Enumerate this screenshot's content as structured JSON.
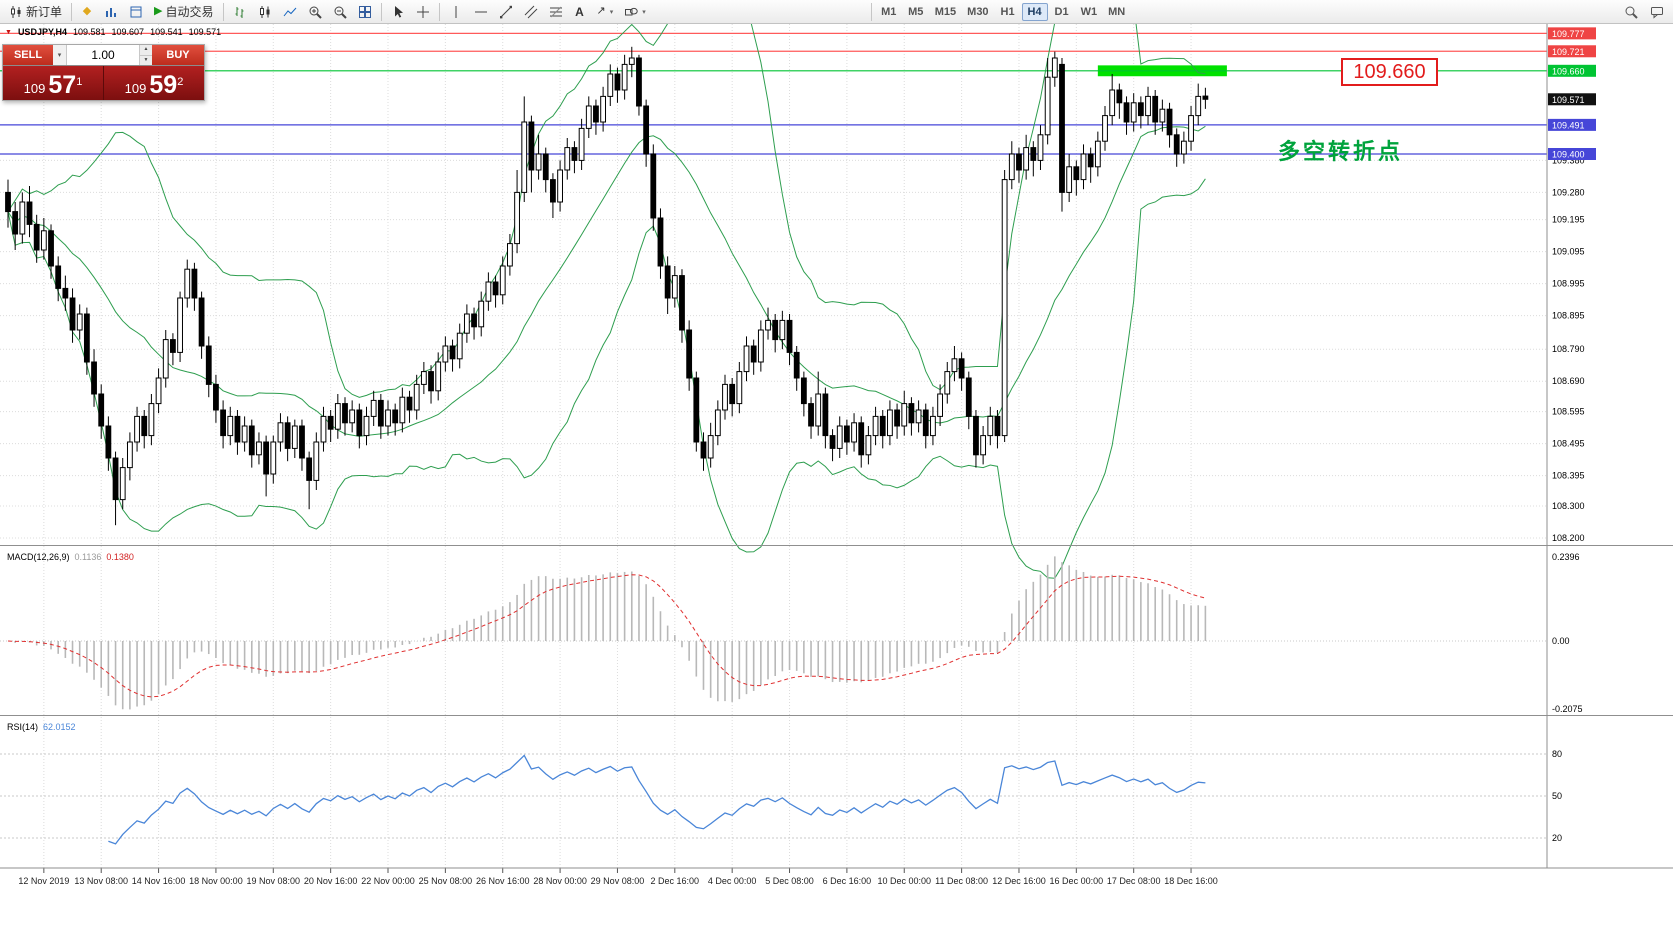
{
  "icons": {
    "one_click_toggle": "▼",
    "dropdown_caret": "▾",
    "autotrading_play": "▶",
    "favorites_diamond": "◆",
    "arrow_tool": "↗",
    "spin_up": "▲",
    "spin_down": "▼"
  },
  "toolbar": {
    "new_order_label": "新订单",
    "autotrading_label": "自动交易",
    "text_tool_label": "A",
    "timeframes": [
      "M1",
      "M5",
      "M15",
      "M30",
      "H1",
      "H4",
      "D1",
      "W1",
      "MN"
    ],
    "active_timeframe": "H4"
  },
  "quote_bar": {
    "symbol_period": "USDJPY,H4",
    "open": "109.581",
    "high": "109.607",
    "low": "109.541",
    "close": "109.571"
  },
  "one_click": {
    "sell_label": "SELL",
    "buy_label": "BUY",
    "volume": "1.00",
    "bid": {
      "big": "109",
      "pips": "57",
      "pt": "1"
    },
    "ask": {
      "big": "109",
      "pips": "59",
      "pt": "2"
    }
  },
  "annotations": {
    "price_callout": "109.660",
    "note_text": "多空转折点",
    "note_color": "#00a33c",
    "callout_color": "#e21c1c"
  },
  "chart_data": [
    {
      "id": "price-panel",
      "type": "candlestick",
      "symbol": "USDJPY",
      "timeframe": "H4",
      "ylim": [
        108.2,
        109.81
      ],
      "grid_prices": [
        109.38,
        109.28,
        109.195,
        109.095,
        108.995,
        108.895,
        108.79,
        108.69,
        108.595,
        108.495,
        108.395,
        108.3,
        108.2
      ],
      "marked_prices": [
        {
          "price": 109.777,
          "bg": "#ef4444"
        },
        {
          "price": 109.721,
          "bg": "#ef4444"
        },
        {
          "price": 109.66,
          "bg": "#00c433"
        },
        {
          "price": 109.571,
          "bg": "#111111"
        },
        {
          "price": 109.491,
          "bg": "#4646d8"
        },
        {
          "price": 109.4,
          "bg": "#4646d8"
        }
      ],
      "hlines": [
        {
          "price": 109.777,
          "color": "#ff5a5a"
        },
        {
          "price": 109.721,
          "color": "#ff5a5a"
        },
        {
          "price": 109.66,
          "color": "#00c433"
        },
        {
          "price": 109.491,
          "color": "#4646d8"
        },
        {
          "price": 109.4,
          "color": "#4646d8"
        }
      ],
      "highlight_rect": {
        "price_top": 109.677,
        "price_bottom": 109.643,
        "bar_start": 152,
        "bar_end": 170,
        "color": "#00e100"
      },
      "bollinger": {
        "period": 20,
        "deviations": 2,
        "color": "#2e9e4f"
      },
      "x_label_first_bar": 5,
      "x_label_step": 8,
      "x_labels": [
        "12 Nov 2019",
        "13 Nov 08:00",
        "14 Nov 16:00",
        "18 Nov 00:00",
        "19 Nov 08:00",
        "20 Nov 16:00",
        "22 Nov 00:00",
        "25 Nov 08:00",
        "26 Nov 16:00",
        "28 Nov 00:00",
        "29 Nov 08:00",
        "2 Dec 16:00",
        "4 Dec 00:00",
        "5 Dec 08:00",
        "6 Dec 16:00",
        "10 Dec 00:00",
        "11 Dec 08:00",
        "12 Dec 16:00",
        "16 Dec 00:00",
        "17 Dec 08:00",
        "18 Dec 16:00"
      ],
      "ohlc": [
        [
          109.28,
          109.32,
          109.17,
          109.22
        ],
        [
          109.22,
          109.25,
          109.1,
          109.15
        ],
        [
          109.15,
          109.28,
          109.12,
          109.25
        ],
        [
          109.25,
          109.3,
          109.14,
          109.18
        ],
        [
          109.18,
          109.21,
          109.06,
          109.1
        ],
        [
          109.1,
          109.2,
          109.07,
          109.16
        ],
        [
          109.16,
          109.18,
          109.01,
          109.05
        ],
        [
          109.05,
          109.08,
          108.94,
          108.98
        ],
        [
          108.98,
          109.02,
          108.91,
          108.95
        ],
        [
          108.95,
          108.98,
          108.81,
          108.85
        ],
        [
          108.85,
          108.93,
          108.82,
          108.9
        ],
        [
          108.9,
          108.92,
          108.71,
          108.75
        ],
        [
          108.75,
          108.79,
          108.61,
          108.65
        ],
        [
          108.65,
          108.68,
          108.51,
          108.55
        ],
        [
          108.55,
          108.58,
          108.41,
          108.45
        ],
        [
          108.45,
          108.47,
          108.24,
          108.32
        ],
        [
          108.32,
          108.45,
          108.29,
          108.42
        ],
        [
          108.42,
          108.53,
          108.38,
          108.5
        ],
        [
          108.5,
          108.61,
          108.47,
          108.58
        ],
        [
          108.58,
          108.6,
          108.48,
          108.52
        ],
        [
          108.52,
          108.65,
          108.49,
          108.62
        ],
        [
          108.62,
          108.73,
          108.59,
          108.7
        ],
        [
          108.7,
          108.85,
          108.67,
          108.82
        ],
        [
          108.82,
          108.84,
          108.74,
          108.78
        ],
        [
          108.78,
          108.97,
          108.75,
          108.95
        ],
        [
          108.95,
          109.07,
          108.92,
          109.04
        ],
        [
          109.04,
          109.06,
          108.91,
          108.95
        ],
        [
          108.95,
          108.97,
          108.76,
          108.8
        ],
        [
          108.8,
          108.83,
          108.64,
          108.68
        ],
        [
          108.68,
          108.71,
          108.56,
          108.6
        ],
        [
          108.6,
          108.63,
          108.48,
          108.52
        ],
        [
          108.52,
          108.61,
          108.49,
          108.58
        ],
        [
          108.58,
          108.6,
          108.46,
          108.5
        ],
        [
          108.5,
          108.58,
          108.47,
          108.55
        ],
        [
          108.55,
          108.57,
          108.42,
          108.46
        ],
        [
          108.46,
          108.53,
          108.43,
          108.5
        ],
        [
          108.5,
          108.52,
          108.33,
          108.4
        ],
        [
          108.4,
          108.52,
          108.37,
          108.5
        ],
        [
          108.5,
          108.59,
          108.47,
          108.56
        ],
        [
          108.56,
          108.58,
          108.44,
          108.48
        ],
        [
          108.48,
          108.57,
          108.45,
          108.55
        ],
        [
          108.55,
          108.57,
          108.41,
          108.45
        ],
        [
          108.45,
          108.47,
          108.29,
          108.38
        ],
        [
          108.38,
          108.53,
          108.35,
          108.5
        ],
        [
          108.5,
          108.61,
          108.47,
          108.58
        ],
        [
          108.58,
          108.6,
          108.5,
          108.54
        ],
        [
          108.54,
          108.65,
          108.51,
          108.62
        ],
        [
          108.62,
          108.64,
          108.52,
          108.56
        ],
        [
          108.56,
          108.63,
          108.53,
          108.6
        ],
        [
          108.6,
          108.62,
          108.48,
          108.52
        ],
        [
          108.52,
          108.61,
          108.49,
          108.58
        ],
        [
          108.58,
          108.66,
          108.55,
          108.63
        ],
        [
          108.63,
          108.65,
          108.51,
          108.55
        ],
        [
          108.55,
          108.63,
          108.52,
          108.6
        ],
        [
          108.6,
          108.62,
          108.52,
          108.56
        ],
        [
          108.56,
          108.67,
          108.53,
          108.64
        ],
        [
          108.64,
          108.66,
          108.56,
          108.6
        ],
        [
          108.6,
          108.71,
          108.57,
          108.68
        ],
        [
          108.68,
          108.75,
          108.65,
          108.72
        ],
        [
          108.72,
          108.74,
          108.62,
          108.66
        ],
        [
          108.66,
          108.78,
          108.63,
          108.75
        ],
        [
          108.75,
          108.83,
          108.72,
          108.8
        ],
        [
          108.8,
          108.82,
          108.72,
          108.76
        ],
        [
          108.76,
          108.87,
          108.73,
          108.84
        ],
        [
          108.84,
          108.93,
          108.81,
          108.9
        ],
        [
          108.9,
          108.92,
          108.82,
          108.86
        ],
        [
          108.86,
          108.97,
          108.83,
          108.94
        ],
        [
          108.94,
          109.03,
          108.91,
          109.0
        ],
        [
          109.0,
          109.02,
          108.92,
          108.96
        ],
        [
          108.96,
          109.08,
          108.93,
          109.05
        ],
        [
          109.05,
          109.15,
          109.02,
          109.12
        ],
        [
          109.12,
          109.35,
          109.09,
          109.28
        ],
        [
          109.28,
          109.58,
          109.25,
          109.5
        ],
        [
          109.5,
          109.52,
          109.28,
          109.35
        ],
        [
          109.35,
          109.46,
          109.32,
          109.4
        ],
        [
          109.4,
          109.42,
          109.28,
          109.32
        ],
        [
          109.32,
          109.34,
          109.2,
          109.25
        ],
        [
          109.25,
          109.38,
          109.22,
          109.35
        ],
        [
          109.35,
          109.45,
          109.32,
          109.42
        ],
        [
          109.42,
          109.44,
          109.34,
          109.38
        ],
        [
          109.38,
          109.51,
          109.35,
          109.48
        ],
        [
          109.48,
          109.58,
          109.45,
          109.55
        ],
        [
          109.55,
          109.57,
          109.46,
          109.5
        ],
        [
          109.5,
          109.61,
          109.47,
          109.58
        ],
        [
          109.58,
          109.68,
          109.55,
          109.65
        ],
        [
          109.65,
          109.67,
          109.56,
          109.6
        ],
        [
          109.6,
          109.71,
          109.57,
          109.68
        ],
        [
          109.68,
          109.735,
          109.64,
          109.7
        ],
        [
          109.7,
          109.71,
          109.52,
          109.55
        ],
        [
          109.55,
          109.57,
          109.36,
          109.4
        ],
        [
          109.4,
          109.43,
          109.16,
          109.2
        ],
        [
          109.2,
          109.23,
          109.01,
          109.05
        ],
        [
          109.05,
          109.08,
          108.9,
          108.95
        ],
        [
          108.95,
          109.05,
          108.92,
          109.02
        ],
        [
          109.02,
          109.04,
          108.81,
          108.85
        ],
        [
          108.85,
          108.88,
          108.66,
          108.7
        ],
        [
          108.7,
          108.72,
          108.47,
          108.5
        ],
        [
          108.5,
          108.53,
          108.41,
          108.45
        ],
        [
          108.45,
          108.56,
          108.42,
          108.52
        ],
        [
          108.52,
          108.63,
          108.49,
          108.6
        ],
        [
          108.6,
          108.71,
          108.57,
          108.68
        ],
        [
          108.68,
          108.7,
          108.58,
          108.62
        ],
        [
          108.62,
          108.75,
          108.59,
          108.72
        ],
        [
          108.72,
          108.83,
          108.69,
          108.8
        ],
        [
          108.8,
          108.82,
          108.71,
          108.75
        ],
        [
          108.75,
          108.88,
          108.72,
          108.85
        ],
        [
          108.85,
          108.92,
          108.82,
          108.88
        ],
        [
          108.88,
          108.9,
          108.78,
          108.82
        ],
        [
          108.82,
          108.91,
          108.79,
          108.88
        ],
        [
          108.88,
          108.9,
          108.74,
          108.78
        ],
        [
          108.78,
          108.8,
          108.66,
          108.7
        ],
        [
          108.7,
          108.72,
          108.58,
          108.62
        ],
        [
          108.62,
          108.64,
          108.51,
          108.55
        ],
        [
          108.55,
          108.72,
          108.52,
          108.65
        ],
        [
          108.65,
          108.67,
          108.48,
          108.52
        ],
        [
          108.52,
          108.54,
          108.44,
          108.48
        ],
        [
          108.48,
          108.58,
          108.45,
          108.55
        ],
        [
          108.55,
          108.57,
          108.46,
          108.5
        ],
        [
          108.5,
          108.59,
          108.47,
          108.56
        ],
        [
          108.56,
          108.58,
          108.42,
          108.46
        ],
        [
          108.46,
          108.55,
          108.43,
          108.52
        ],
        [
          108.52,
          108.61,
          108.49,
          108.58
        ],
        [
          108.58,
          108.6,
          108.48,
          108.52
        ],
        [
          108.52,
          108.63,
          108.49,
          108.6
        ],
        [
          108.6,
          108.62,
          108.51,
          108.55
        ],
        [
          108.55,
          108.66,
          108.52,
          108.62
        ],
        [
          108.62,
          108.64,
          108.52,
          108.56
        ],
        [
          108.56,
          108.63,
          108.53,
          108.6
        ],
        [
          108.6,
          108.62,
          108.48,
          108.52
        ],
        [
          108.52,
          108.61,
          108.49,
          108.58
        ],
        [
          108.58,
          108.68,
          108.55,
          108.65
        ],
        [
          108.65,
          108.75,
          108.62,
          108.72
        ],
        [
          108.72,
          108.8,
          108.69,
          108.76
        ],
        [
          108.76,
          108.78,
          108.66,
          108.7
        ],
        [
          108.7,
          108.72,
          108.54,
          108.58
        ],
        [
          108.58,
          108.6,
          108.42,
          108.46
        ],
        [
          108.46,
          108.55,
          108.43,
          108.52
        ],
        [
          108.52,
          108.61,
          108.49,
          108.58
        ],
        [
          108.58,
          108.6,
          108.48,
          108.52
        ],
        [
          108.52,
          109.35,
          108.5,
          109.32
        ],
        [
          109.32,
          109.44,
          109.29,
          109.4
        ],
        [
          109.4,
          109.42,
          109.31,
          109.35
        ],
        [
          109.35,
          109.46,
          109.32,
          109.42
        ],
        [
          109.42,
          109.44,
          109.33,
          109.38
        ],
        [
          109.38,
          109.49,
          109.35,
          109.46
        ],
        [
          109.46,
          109.7,
          109.43,
          109.64
        ],
        [
          109.64,
          109.72,
          109.61,
          109.7
        ],
        [
          109.68,
          109.7,
          109.22,
          109.28
        ],
        [
          109.28,
          109.4,
          109.25,
          109.36
        ],
        [
          109.36,
          109.38,
          109.27,
          109.32
        ],
        [
          109.32,
          109.43,
          109.29,
          109.4
        ],
        [
          109.4,
          109.42,
          109.31,
          109.36
        ],
        [
          109.36,
          109.47,
          109.33,
          109.44
        ],
        [
          109.44,
          109.55,
          109.41,
          109.52
        ],
        [
          109.52,
          109.65,
          109.49,
          109.6
        ],
        [
          109.6,
          109.62,
          109.51,
          109.56
        ],
        [
          109.56,
          109.58,
          109.46,
          109.5
        ],
        [
          109.5,
          109.59,
          109.47,
          109.56
        ],
        [
          109.56,
          109.58,
          109.48,
          109.52
        ],
        [
          109.52,
          109.61,
          109.49,
          109.58
        ],
        [
          109.58,
          109.6,
          109.46,
          109.5
        ],
        [
          109.5,
          109.57,
          109.47,
          109.54
        ],
        [
          109.54,
          109.56,
          109.42,
          109.46
        ],
        [
          109.46,
          109.48,
          109.36,
          109.4
        ],
        [
          109.4,
          109.47,
          109.37,
          109.44
        ],
        [
          109.44,
          109.55,
          109.41,
          109.52
        ],
        [
          109.52,
          109.62,
          109.49,
          109.58
        ],
        [
          109.581,
          109.607,
          109.541,
          109.571
        ]
      ]
    },
    {
      "id": "macd-panel",
      "type": "bar",
      "name": "MACD(12,26,9)",
      "current_macd": "0.1136",
      "current_signal": "0.1380",
      "params": [
        12,
        26,
        9
      ],
      "scale_labels": {
        "top": "0.2396",
        "zero": "0.00",
        "bottom": "-0.2075"
      },
      "histogram_color": "#b8b8b8",
      "signal_color": "#e03030",
      "derived_from": "computed from price-panel ohlc closes"
    },
    {
      "id": "rsi-panel",
      "type": "line",
      "name": "RSI(14)",
      "current_value": "62.0152",
      "levels": [
        80,
        50,
        20
      ],
      "line_color": "#4a86d8",
      "derived_from": "computed from price-panel ohlc closes"
    }
  ]
}
